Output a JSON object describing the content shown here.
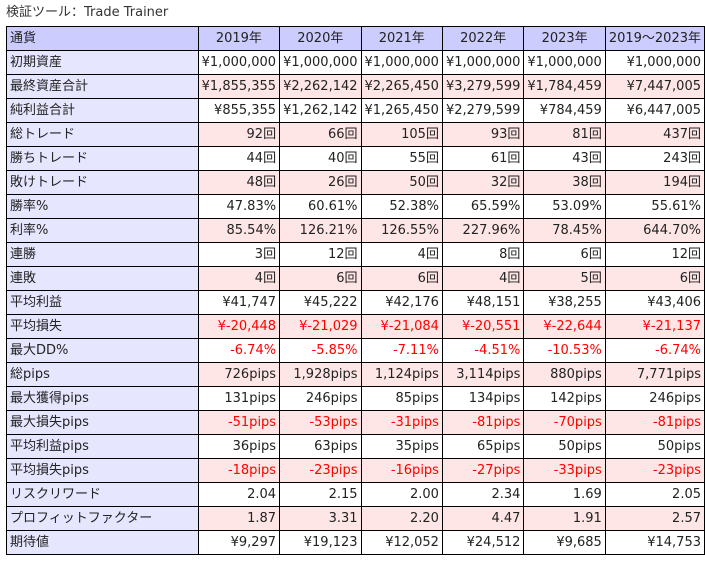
{
  "caption": "検証ツール：Trade Trainer",
  "header": {
    "label": "通貨",
    "years": [
      "2019年",
      "2020年",
      "2021年",
      "2022年",
      "2023年",
      "2019〜2023年"
    ]
  },
  "rows": [
    {
      "label": "初期資産",
      "values": [
        "¥1,000,000",
        "¥1,000,000",
        "¥1,000,000",
        "¥1,000,000",
        "¥1,000,000",
        "¥1,000,000"
      ],
      "negative": false
    },
    {
      "label": "最終資産合計",
      "values": [
        "¥1,855,355",
        "¥2,262,142",
        "¥2,265,450",
        "¥3,279,599",
        "¥1,784,459",
        "¥7,447,005"
      ],
      "negative": false
    },
    {
      "label": "純利益合計",
      "values": [
        "¥855,355",
        "¥1,262,142",
        "¥1,265,450",
        "¥2,279,599",
        "¥784,459",
        "¥6,447,005"
      ],
      "negative": false
    },
    {
      "label": "総トレード",
      "values": [
        "92回",
        "66回",
        "105回",
        "93回",
        "81回",
        "437回"
      ],
      "negative": false
    },
    {
      "label": "勝ちトレード",
      "values": [
        "44回",
        "40回",
        "55回",
        "61回",
        "43回",
        "243回"
      ],
      "negative": false
    },
    {
      "label": "敗けトレード",
      "values": [
        "48回",
        "26回",
        "50回",
        "32回",
        "38回",
        "194回"
      ],
      "negative": false
    },
    {
      "label": "勝率%",
      "values": [
        "47.83%",
        "60.61%",
        "52.38%",
        "65.59%",
        "53.09%",
        "55.61%"
      ],
      "negative": false
    },
    {
      "label": "利率%",
      "values": [
        "85.54%",
        "126.21%",
        "126.55%",
        "227.96%",
        "78.45%",
        "644.70%"
      ],
      "negative": false
    },
    {
      "label": "連勝",
      "values": [
        "3回",
        "12回",
        "4回",
        "8回",
        "6回",
        "12回"
      ],
      "negative": false
    },
    {
      "label": "連敗",
      "values": [
        "4回",
        "6回",
        "6回",
        "4回",
        "5回",
        "6回"
      ],
      "negative": false
    },
    {
      "label": "平均利益",
      "values": [
        "¥41,747",
        "¥45,222",
        "¥42,176",
        "¥48,151",
        "¥38,255",
        "¥43,406"
      ],
      "negative": false
    },
    {
      "label": "平均損失",
      "values": [
        "¥-20,448",
        "¥-21,029",
        "¥-21,084",
        "¥-20,551",
        "¥-22,644",
        "¥-21,137"
      ],
      "negative": true
    },
    {
      "label": "最大DD%",
      "values": [
        "-6.74%",
        "-5.85%",
        "-7.11%",
        "-4.51%",
        "-10.53%",
        "-6.74%"
      ],
      "negative": true
    },
    {
      "label": "総pips",
      "values": [
        "726pips",
        "1,928pips",
        "1,124pips",
        "3,114pips",
        "880pips",
        "7,771pips"
      ],
      "negative": false
    },
    {
      "label": "最大獲得pips",
      "values": [
        "131pips",
        "246pips",
        "85pips",
        "134pips",
        "142pips",
        "246pips"
      ],
      "negative": false
    },
    {
      "label": "最大損失pips",
      "values": [
        "-51pips",
        "-53pips",
        "-31pips",
        "-81pips",
        "-70pips",
        "-81pips"
      ],
      "negative": true
    },
    {
      "label": "平均利益pips",
      "values": [
        "36pips",
        "63pips",
        "35pips",
        "65pips",
        "50pips",
        "50pips"
      ],
      "negative": false
    },
    {
      "label": "平均損失pips",
      "values": [
        "-18pips",
        "-23pips",
        "-16pips",
        "-27pips",
        "-33pips",
        "-23pips"
      ],
      "negative": true
    },
    {
      "label": "リスクリワード",
      "values": [
        "2.04",
        "2.15",
        "2.00",
        "2.34",
        "1.69",
        "2.05"
      ],
      "negative": false
    },
    {
      "label": "プロフィットファクター",
      "values": [
        "1.87",
        "3.31",
        "2.20",
        "4.47",
        "1.91",
        "2.57"
      ],
      "negative": false
    },
    {
      "label": "期待値",
      "values": [
        "¥9,297",
        "¥19,123",
        "¥12,052",
        "¥24,512",
        "¥9,685",
        "¥14,753"
      ],
      "negative": false
    }
  ],
  "colors": {
    "header_bg": "#ccccff",
    "label_bg": "#e6e6ff",
    "stripe_white": "#ffffff",
    "stripe_pink": "#ffe6e6",
    "negative_text": "#ff0000"
  }
}
